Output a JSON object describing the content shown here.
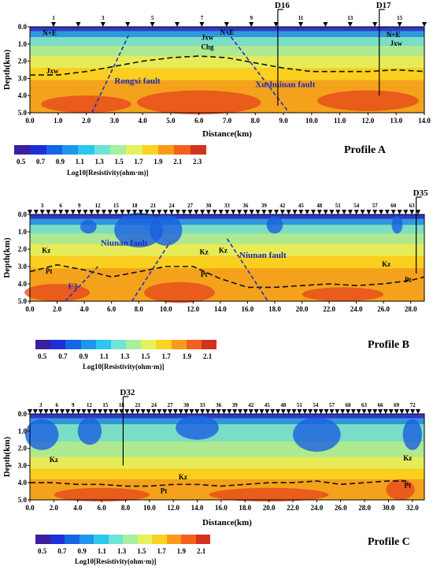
{
  "colorbar": {
    "label": "Log10[Resistivity(ohm·m)]",
    "ticks_ab": [
      "0.5",
      "0.7",
      "0.9",
      "1.1",
      "1.3",
      "1.5",
      "1.7",
      "1.9",
      "2.1",
      "2.3"
    ],
    "ticks_c": [
      "0.5",
      "0.7",
      "0.9",
      "1.1",
      "1.3",
      "1.5",
      "1.7",
      "1.9",
      "2.1"
    ],
    "colors": [
      "#3b1f9e",
      "#1e2fd8",
      "#1565e6",
      "#1c97ec",
      "#2cc6ee",
      "#6fe3d6",
      "#a7ef9b",
      "#e4f25c",
      "#fbd321",
      "#fb9a1a",
      "#f3601c",
      "#d4321c"
    ]
  },
  "profiles": [
    {
      "id": "A",
      "title": "Profile A",
      "ylabel": "Depth(km)",
      "xlabel": "Distance(km)",
      "xticks": [
        "0.0",
        "1.0",
        "2.0",
        "3.0",
        "4.0",
        "5.0",
        "6.0",
        "7.0",
        "8.0",
        "9.0",
        "10.0",
        "11.0",
        "12.0",
        "13.0",
        "14.0"
      ],
      "yticks": [
        "0.0",
        "1.0",
        "2.0",
        "3.0",
        "4.0",
        "5.0"
      ],
      "stations": [
        "1",
        "3",
        "5",
        "7",
        "9",
        "11",
        "13",
        "15"
      ],
      "boreholes": [
        "D16",
        "D17"
      ],
      "units": [
        "N+E",
        "N+E",
        "N+E",
        "Jxw",
        "Jxw",
        "Jxw",
        "Chg"
      ],
      "faults": [
        "Rongxi fault",
        "Xushuinan fault"
      ]
    },
    {
      "id": "B",
      "title": "Profile B",
      "ylabel": "Depth(km)",
      "xlabel": "",
      "xticks": [
        "0.0",
        "2.0",
        "4.0",
        "6.0",
        "8.0",
        "10.0",
        "12.0",
        "14.0",
        "16.0",
        "18.0",
        "20.0",
        "22.0",
        "24.0",
        "26.0",
        "28.0"
      ],
      "yticks": [
        "0.0",
        "1.0",
        "2.0",
        "3.0",
        "4.0",
        "5.0"
      ],
      "stations": [
        "3",
        "6",
        "9",
        "12",
        "15",
        "18",
        "21",
        "24",
        "27",
        "30",
        "33",
        "36",
        "39",
        "42",
        "45",
        "48",
        "51",
        "54",
        "57",
        "60",
        "63"
      ],
      "boreholes": [
        "D35"
      ],
      "units": [
        "Kz",
        "Kz",
        "Kz",
        "Kz",
        "Pt",
        "Pt",
        "Pt"
      ],
      "faults": [
        "Niunan fault",
        "Niunan fault",
        "F3"
      ]
    },
    {
      "id": "C",
      "title": "Profile C",
      "ylabel": "Depth(km)",
      "xlabel": "Distance(km)",
      "xticks": [
        "0.0",
        "2.0",
        "4.0",
        "6.0",
        "8.0",
        "10.0",
        "12.0",
        "14.0",
        "16.0",
        "18.0",
        "20.0",
        "22.0",
        "24.0",
        "26.0",
        "28.0",
        "30.0",
        "32.0"
      ],
      "yticks": [
        "0.0",
        "1.0",
        "2.0",
        "3.0",
        "4.0",
        "5.0"
      ],
      "stations": [
        "3",
        "6",
        "9",
        "12",
        "15",
        "18",
        "21",
        "24",
        "27",
        "30",
        "33",
        "36",
        "39",
        "42",
        "45",
        "48",
        "51",
        "54",
        "57",
        "60",
        "63",
        "66",
        "69",
        "72"
      ],
      "boreholes": [
        "D32"
      ],
      "units": [
        "Kz",
        "Kz",
        "Kz",
        "Pt",
        "Pt"
      ],
      "faults": []
    }
  ],
  "chart_data": [
    {
      "type": "heatmap",
      "title": "Profile A",
      "xlabel": "Distance(km)",
      "ylabel": "Depth(km)",
      "xlim": [
        0,
        14
      ],
      "ylim": [
        5,
        0
      ],
      "colorbar": "Log10[Resistivity(ohm·m)]",
      "colorbar_range": [
        0.5,
        2.3
      ],
      "boreholes": [
        {
          "name": "D16",
          "x": 8.8,
          "depth": 4.6
        },
        {
          "name": "D17",
          "x": 12.4,
          "depth": 4.0
        }
      ],
      "interface": {
        "x": [
          0,
          1,
          2,
          3,
          4,
          5,
          6,
          7,
          8,
          9,
          10,
          11,
          12,
          13,
          14
        ],
        "depth": [
          2.8,
          2.8,
          2.6,
          2.3,
          2.0,
          1.8,
          1.7,
          1.8,
          2.1,
          2.4,
          2.6,
          2.6,
          2.6,
          2.5,
          2.6
        ]
      },
      "faults": [
        {
          "name": "Rongxi fault",
          "x": [
            2.2,
            3.5
          ],
          "depth": [
            5.0,
            0.5
          ]
        },
        {
          "name": "Xushuinan fault",
          "x": [
            7.0,
            9.2
          ],
          "depth": [
            0.3,
            5.0
          ]
        }
      ]
    },
    {
      "type": "heatmap",
      "title": "Profile B",
      "xlabel": "",
      "ylabel": "Depth(km)",
      "xlim": [
        0,
        29
      ],
      "ylim": [
        5,
        0
      ],
      "colorbar": "Log10[Resistivity(ohm·m)]",
      "colorbar_range": [
        0.5,
        2.2
      ],
      "boreholes": [
        {
          "name": "D35",
          "x": 28.4,
          "depth": 3.4
        }
      ],
      "interface": {
        "x": [
          0,
          2,
          4,
          6,
          8,
          10,
          12,
          14,
          16,
          18,
          20,
          22,
          24,
          26,
          28,
          29
        ],
        "depth": [
          3.3,
          2.9,
          3.2,
          3.6,
          3.3,
          3.0,
          3.0,
          3.7,
          4.2,
          4.2,
          4.1,
          4.0,
          4.1,
          4.0,
          3.8,
          3.6
        ]
      },
      "faults": [
        {
          "name": "Niunan fault",
          "x": [
            7.5,
            10.3
          ],
          "depth": [
            5.0,
            1.6
          ]
        },
        {
          "name": "Niunan fault",
          "x": [
            14.5,
            17.5
          ],
          "depth": [
            1.4,
            5.0
          ]
        },
        {
          "name": "F3",
          "x": [
            2.6,
            5.0
          ],
          "depth": [
            5.0,
            3.0
          ]
        }
      ]
    },
    {
      "type": "heatmap",
      "title": "Profile C",
      "xlabel": "Distance(km)",
      "ylabel": "Depth(km)",
      "xlim": [
        0,
        33
      ],
      "ylim": [
        5,
        0
      ],
      "colorbar": "Log10[Resistivity(ohm·m)]",
      "colorbar_range": [
        0.5,
        2.2
      ],
      "boreholes": [
        {
          "name": "D32",
          "x": 7.8,
          "depth": 3.0
        }
      ],
      "interface": {
        "x": [
          0,
          2,
          4,
          6,
          8,
          10,
          12,
          14,
          16,
          18,
          20,
          22,
          24,
          26,
          28,
          30,
          31.5
        ],
        "depth": [
          4.0,
          4.0,
          4.1,
          4.1,
          4.2,
          4.2,
          4.1,
          4.1,
          4.2,
          4.1,
          4.0,
          4.0,
          3.9,
          4.1,
          4.0,
          3.9,
          3.9
        ]
      },
      "faults": []
    }
  ]
}
